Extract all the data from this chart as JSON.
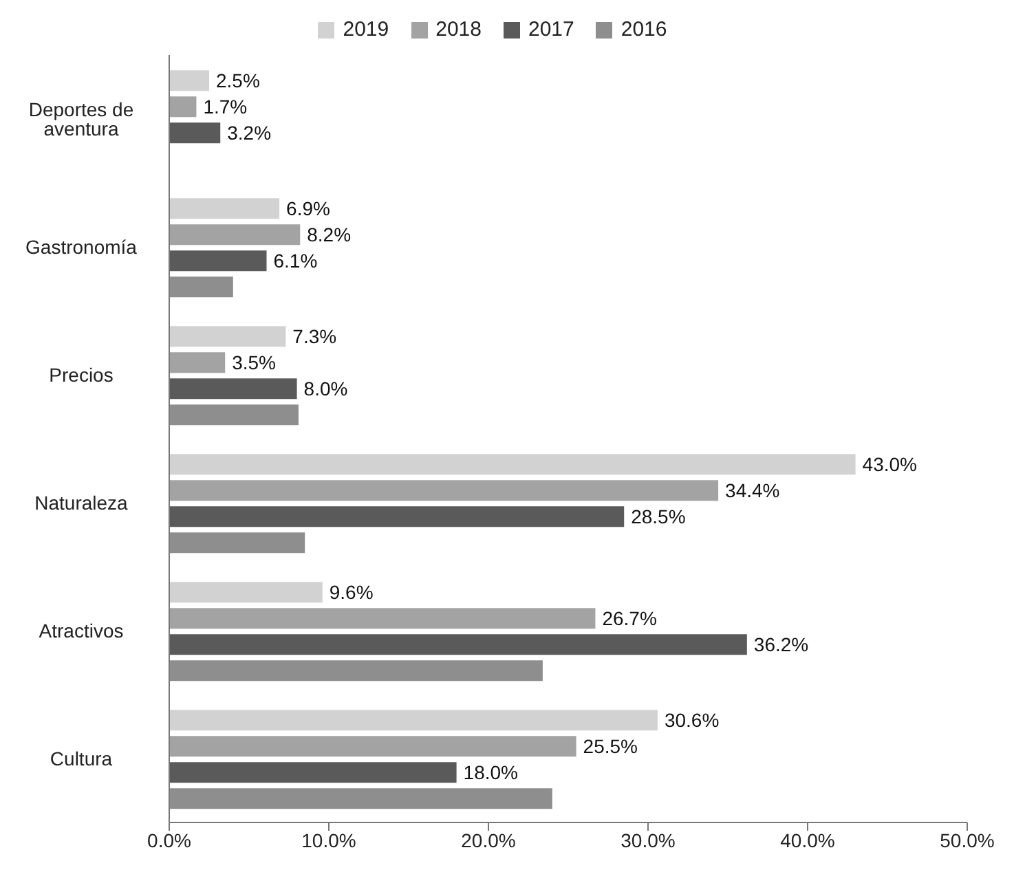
{
  "chart_data": {
    "type": "bar",
    "orientation": "horizontal",
    "categories": [
      "Deportes de aventura",
      "Gastronomía",
      "Precios",
      "Naturaleza",
      "Atractivos",
      "Cultura"
    ],
    "series": [
      {
        "name": "2019",
        "color": "#d2d2d2",
        "values": [
          2.5,
          6.9,
          7.3,
          43.0,
          9.6,
          30.6
        ],
        "value_labels": [
          "2.5%",
          "6.9%",
          "7.3%",
          "43.0%",
          "9.6%",
          "30.6%"
        ]
      },
      {
        "name": "2018",
        "color": "#a3a3a3",
        "values": [
          1.7,
          8.2,
          3.5,
          34.4,
          26.7,
          25.5
        ],
        "value_labels": [
          "1.7%",
          "8.2%",
          "3.5%",
          "34.4%",
          "26.7%",
          "25.5%"
        ]
      },
      {
        "name": "2017",
        "color": "#5a5a5a",
        "values": [
          3.2,
          6.1,
          8.0,
          28.5,
          36.2,
          18.0
        ],
        "value_labels": [
          "3.2%",
          "6.1%",
          "8.0%",
          "28.5%",
          "36.2%",
          "18.0%"
        ]
      },
      {
        "name": "2016",
        "color": "#8e8e8e",
        "values": [
          null,
          4.0,
          8.1,
          8.5,
          23.4,
          24.0
        ]
      }
    ],
    "xlim": [
      0,
      50
    ],
    "xticks": [
      {
        "value": 0,
        "label": "0.0%"
      },
      {
        "value": 10,
        "label": "10.0%"
      },
      {
        "value": 20,
        "label": "20.0%"
      },
      {
        "value": 30,
        "label": "30.0%"
      },
      {
        "value": 40,
        "label": "40.0%"
      },
      {
        "value": 50,
        "label": "50.0%"
      }
    ],
    "grid": false,
    "legend": "top"
  }
}
